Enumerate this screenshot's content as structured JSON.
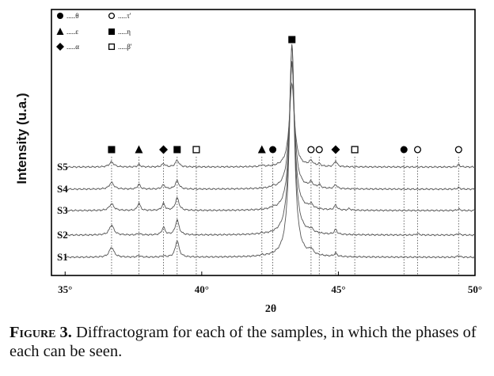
{
  "chart_data": {
    "type": "line",
    "title": "",
    "xlabel": "2θ",
    "ylabel": "Intensity (u.a.)",
    "xlim": [
      34.5,
      50
    ],
    "xticks": [
      35,
      40,
      45,
      50
    ],
    "xtick_labels": [
      "35°",
      "40°",
      "45°",
      "50°"
    ],
    "grid": false,
    "legend_position": "top-left",
    "legend": [
      {
        "symbol": "filled-circle",
        "label": "θ"
      },
      {
        "symbol": "open-circle",
        "label": "τ'"
      },
      {
        "symbol": "filled-triangle",
        "label": "ε"
      },
      {
        "symbol": "filled-square",
        "label": "η"
      },
      {
        "symbol": "filled-diamond",
        "label": "α"
      },
      {
        "symbol": "open-square",
        "label": "β'"
      }
    ],
    "phase_markers": [
      {
        "x": 36.7,
        "symbol": "filled-square",
        "phase": "η"
      },
      {
        "x": 37.7,
        "symbol": "filled-triangle",
        "phase": "ε"
      },
      {
        "x": 38.6,
        "symbol": "filled-diamond",
        "phase": "α"
      },
      {
        "x": 39.1,
        "symbol": "filled-square",
        "phase": "η"
      },
      {
        "x": 39.8,
        "symbol": "open-square",
        "phase": "β'"
      },
      {
        "x": 42.2,
        "symbol": "filled-triangle",
        "phase": "ε"
      },
      {
        "x": 42.6,
        "symbol": "filled-circle",
        "phase": "θ"
      },
      {
        "x": 43.3,
        "symbol": "filled-square",
        "phase": "η",
        "top": true
      },
      {
        "x": 44.0,
        "symbol": "open-circle",
        "phase": "τ'"
      },
      {
        "x": 44.3,
        "symbol": "open-circle",
        "phase": "τ'"
      },
      {
        "x": 44.9,
        "symbol": "filled-diamond",
        "phase": "α"
      },
      {
        "x": 45.6,
        "symbol": "open-square",
        "phase": "β'"
      },
      {
        "x": 47.4,
        "symbol": "filled-circle",
        "phase": "θ"
      },
      {
        "x": 47.9,
        "symbol": "open-circle",
        "phase": "τ'"
      },
      {
        "x": 49.4,
        "symbol": "open-circle",
        "phase": "τ'"
      }
    ],
    "series": [
      {
        "name": "S1",
        "baseline": 0,
        "peaks": [
          [
            36.7,
            12,
            0.1
          ],
          [
            37.7,
            2,
            0.06
          ],
          [
            38.6,
            1.5,
            0.06
          ],
          [
            39.1,
            20,
            0.08
          ],
          [
            42.2,
            1.2,
            0.05
          ],
          [
            43.3,
            255,
            0.11
          ],
          [
            44.0,
            6,
            0.09
          ],
          [
            44.9,
            4,
            0.06
          ],
          [
            49.4,
            2,
            0.05
          ]
        ]
      },
      {
        "name": "S2",
        "baseline": 1,
        "peaks": [
          [
            36.7,
            12,
            0.1
          ],
          [
            37.7,
            2,
            0.06
          ],
          [
            38.6,
            9,
            0.07
          ],
          [
            39.1,
            18,
            0.08
          ],
          [
            42.2,
            1.2,
            0.05
          ],
          [
            43.3,
            230,
            0.11
          ],
          [
            44.0,
            4,
            0.09
          ],
          [
            44.9,
            6,
            0.06
          ],
          [
            47.9,
            2,
            0.05
          ],
          [
            49.4,
            2,
            0.05
          ]
        ]
      },
      {
        "name": "S3",
        "baseline": 2,
        "peaks": [
          [
            36.7,
            8,
            0.1
          ],
          [
            37.7,
            9,
            0.06
          ],
          [
            38.6,
            8,
            0.07
          ],
          [
            39.1,
            15,
            0.08
          ],
          [
            42.6,
            2,
            0.05
          ],
          [
            43.3,
            180,
            0.11
          ],
          [
            44.0,
            5,
            0.09
          ],
          [
            44.9,
            6,
            0.06
          ],
          [
            45.4,
            2,
            0.05
          ],
          [
            49.4,
            2,
            0.05
          ]
        ]
      },
      {
        "name": "S4",
        "baseline": 3,
        "peaks": [
          [
            36.7,
            8,
            0.1
          ],
          [
            37.7,
            6,
            0.06
          ],
          [
            38.6,
            5,
            0.07
          ],
          [
            39.1,
            10,
            0.08
          ],
          [
            42.6,
            2,
            0.05
          ],
          [
            43.3,
            150,
            0.11
          ],
          [
            44.0,
            6,
            0.09
          ],
          [
            44.3,
            4,
            0.06
          ],
          [
            44.9,
            5,
            0.06
          ],
          [
            49.4,
            2,
            0.05
          ]
        ]
      },
      {
        "name": "S5",
        "baseline": 4,
        "peaks": [
          [
            36.7,
            6,
            0.1
          ],
          [
            37.7,
            3,
            0.06
          ],
          [
            38.6,
            4,
            0.07
          ],
          [
            39.1,
            8,
            0.08
          ],
          [
            42.2,
            2,
            0.05
          ],
          [
            43.3,
            100,
            0.11
          ],
          [
            44.0,
            6,
            0.09
          ],
          [
            44.3,
            3,
            0.06
          ],
          [
            44.9,
            7,
            0.06
          ],
          [
            49.4,
            3,
            0.05
          ]
        ]
      }
    ]
  },
  "caption": {
    "label": "Figure 3.",
    "text": " Diffractogram for each of the samples, in which the phases of each can be seen."
  }
}
